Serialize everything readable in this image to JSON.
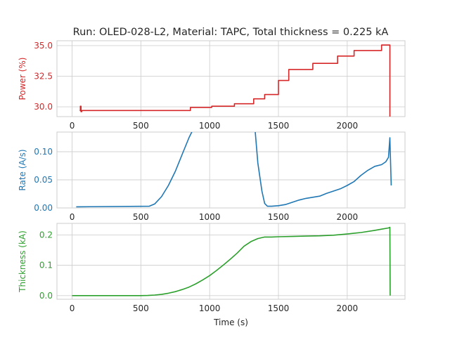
{
  "chart_data": [
    {
      "type": "line",
      "title": "Run: OLED-028-L2, Material: TAPC, Total thickness = 0.225 kA",
      "xlabel": "",
      "ylabel": "Power (%)",
      "color": "#d62728",
      "xlim": [
        -110,
        2420
      ],
      "ylim": [
        29.2,
        35.4
      ],
      "xticks": [
        0,
        500,
        1000,
        1500,
        2000
      ],
      "yticks": [
        30.0,
        32.5,
        35.0
      ],
      "ytick_labels": [
        "30.0",
        "32.5",
        "35.0"
      ],
      "grid": true,
      "series": [
        {
          "x": [
            55,
            60,
            60,
            65,
            65,
            70,
            70,
            860,
            860,
            1015,
            1015,
            1180,
            1180,
            1320,
            1320,
            1400,
            1400,
            1500,
            1500,
            1575,
            1575,
            1750,
            1750,
            1930,
            1930,
            2050,
            2050,
            2250,
            2250,
            2310,
            2310
          ],
          "y": [
            29.7,
            29.7,
            30.05,
            30.05,
            29.6,
            29.6,
            29.7,
            29.7,
            29.95,
            29.95,
            30.05,
            30.05,
            30.25,
            30.25,
            30.65,
            30.65,
            31.0,
            31.0,
            32.15,
            32.15,
            33.05,
            33.05,
            33.55,
            33.55,
            34.15,
            34.15,
            34.6,
            34.6,
            35.05,
            35.05,
            29.1
          ]
        }
      ]
    },
    {
      "type": "line",
      "title": "",
      "xlabel": "",
      "ylabel": "Rate (A/s)",
      "color": "#1f77b4",
      "xlim": [
        -110,
        2420
      ],
      "ylim": [
        0,
        0.135
      ],
      "xticks": [
        0,
        500,
        1000,
        1500,
        2000
      ],
      "yticks": [
        0.0,
        0.05,
        0.1
      ],
      "ytick_labels": [
        "0.00",
        "0.05",
        "0.10"
      ],
      "grid": true,
      "series": [
        {
          "x": [
            30,
            560,
            600,
            650,
            700,
            750,
            800,
            850,
            880,
            1330,
            1350,
            1380,
            1400,
            1420,
            1450,
            1500,
            1550,
            1600,
            1650,
            1700,
            1750,
            1800,
            1850,
            1900,
            1950,
            2000,
            2050,
            2100,
            2150,
            2200,
            2250,
            2280,
            2300,
            2310,
            2320
          ],
          "y": [
            0.002,
            0.003,
            0.007,
            0.02,
            0.04,
            0.065,
            0.095,
            0.125,
            0.14,
            0.14,
            0.08,
            0.03,
            0.008,
            0.003,
            0.003,
            0.004,
            0.006,
            0.01,
            0.014,
            0.017,
            0.019,
            0.021,
            0.026,
            0.03,
            0.034,
            0.04,
            0.047,
            0.058,
            0.067,
            0.074,
            0.077,
            0.082,
            0.09,
            0.125,
            0.04
          ]
        }
      ]
    },
    {
      "type": "line",
      "title": "",
      "xlabel": "Time (s)",
      "ylabel": "Thickness (kA)",
      "color": "#2ca02c",
      "xlim": [
        -110,
        2420
      ],
      "ylim": [
        -0.012,
        0.238
      ],
      "xticks": [
        0,
        500,
        1000,
        1500,
        2000
      ],
      "yticks": [
        0.0,
        0.1,
        0.2
      ],
      "ytick_labels": [
        "0.0",
        "0.1",
        "0.2"
      ],
      "grid": true,
      "series": [
        {
          "x": [
            0,
            500,
            550,
            600,
            650,
            700,
            750,
            800,
            850,
            900,
            950,
            1000,
            1050,
            1100,
            1150,
            1200,
            1250,
            1300,
            1350,
            1400,
            1450,
            1500,
            1600,
            1700,
            1800,
            1900,
            2000,
            2100,
            2200,
            2250,
            2300,
            2310,
            2312
          ],
          "y": [
            0,
            0,
            0.0005,
            0.002,
            0.004,
            0.008,
            0.013,
            0.02,
            0.028,
            0.039,
            0.052,
            0.066,
            0.083,
            0.101,
            0.12,
            0.14,
            0.163,
            0.178,
            0.188,
            0.193,
            0.193,
            0.194,
            0.195,
            0.196,
            0.197,
            0.199,
            0.203,
            0.208,
            0.215,
            0.219,
            0.223,
            0.225,
            0
          ]
        }
      ]
    }
  ]
}
